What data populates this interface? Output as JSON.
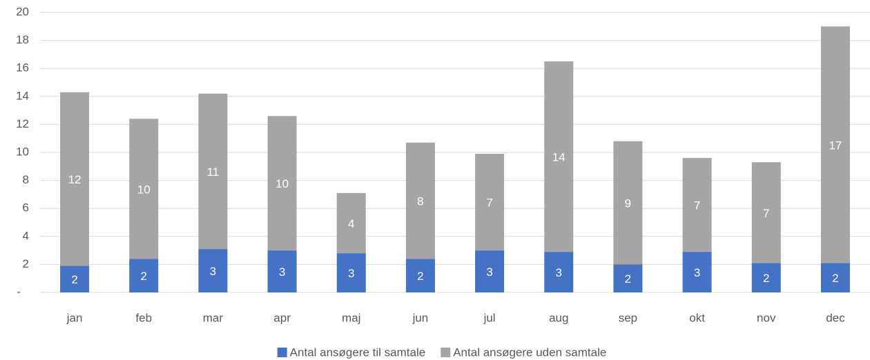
{
  "chart_data": {
    "type": "stacked_bar",
    "categories": [
      "jan",
      "feb",
      "mar",
      "apr",
      "maj",
      "jun",
      "jul",
      "aug",
      "sep",
      "okt",
      "nov",
      "dec"
    ],
    "series": [
      {
        "name": "Antal ansøgere til samtale",
        "color": "#4472c4",
        "values": [
          1.9,
          2.4,
          3.1,
          3.0,
          2.8,
          2.4,
          3.0,
          2.9,
          2.0,
          2.9,
          2.1,
          2.1
        ],
        "value_labels": [
          "2",
          "2",
          "3",
          "3",
          "3",
          "2",
          "3",
          "3",
          "2",
          "3",
          "2",
          "2"
        ]
      },
      {
        "name": "Antal ansøgere uden samtale",
        "color": "#a5a5a5",
        "values": [
          12.4,
          10.0,
          11.1,
          9.6,
          4.3,
          8.3,
          6.9,
          13.6,
          8.8,
          6.7,
          7.2,
          16.9
        ],
        "value_labels": [
          "12",
          "10",
          "11",
          "10",
          "4",
          "8",
          "7",
          "14",
          "9",
          "7",
          "7",
          "17"
        ]
      }
    ],
    "ylim": [
      0,
      20
    ],
    "yticks": [
      {
        "value": 0,
        "label": "-"
      },
      2,
      4,
      6,
      8,
      10,
      12,
      14,
      16,
      18,
      20
    ],
    "grid": true,
    "legend": "bottom"
  }
}
